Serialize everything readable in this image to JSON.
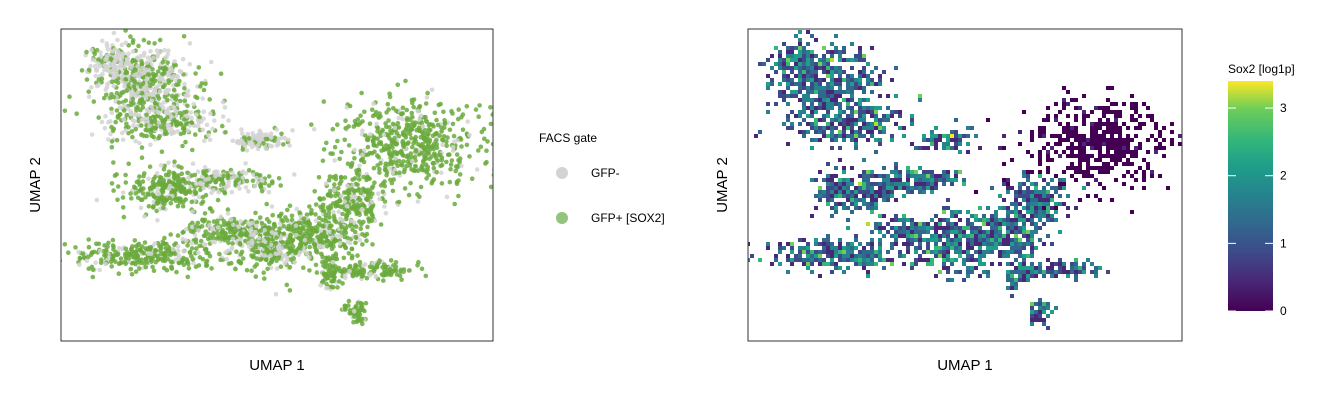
{
  "chart_data": [
    {
      "type": "scatter",
      "xlabel": "UMAP 1",
      "ylabel": "UMAP 2",
      "legend": {
        "title": "FACS gate",
        "placement": "right",
        "entries": [
          {
            "label": "GFP-",
            "color": "#d3d3d3"
          },
          {
            "label": "GFP+ [SOX2]",
            "color": "#6aaa3c"
          }
        ]
      },
      "axis_ticks": false,
      "grid": false
    },
    {
      "type": "heatmap",
      "xlabel": "UMAP 1",
      "ylabel": "UMAP 2",
      "colorbar": {
        "title": "Sox2 [log1p]",
        "colormap": "viridis",
        "range": [
          0,
          3.4
        ],
        "ticks": [
          0,
          1,
          2,
          3
        ],
        "tick_labels": [
          "0",
          "1",
          "2",
          "3"
        ],
        "placement": "right"
      },
      "axis_ticks": false,
      "grid": false
    }
  ],
  "colors": {
    "gfp_neg": "#d3d3d3",
    "gfp_pos": "#6aaa3c",
    "gfp_pos_legend": "#93c47d",
    "frame": "#333333"
  }
}
